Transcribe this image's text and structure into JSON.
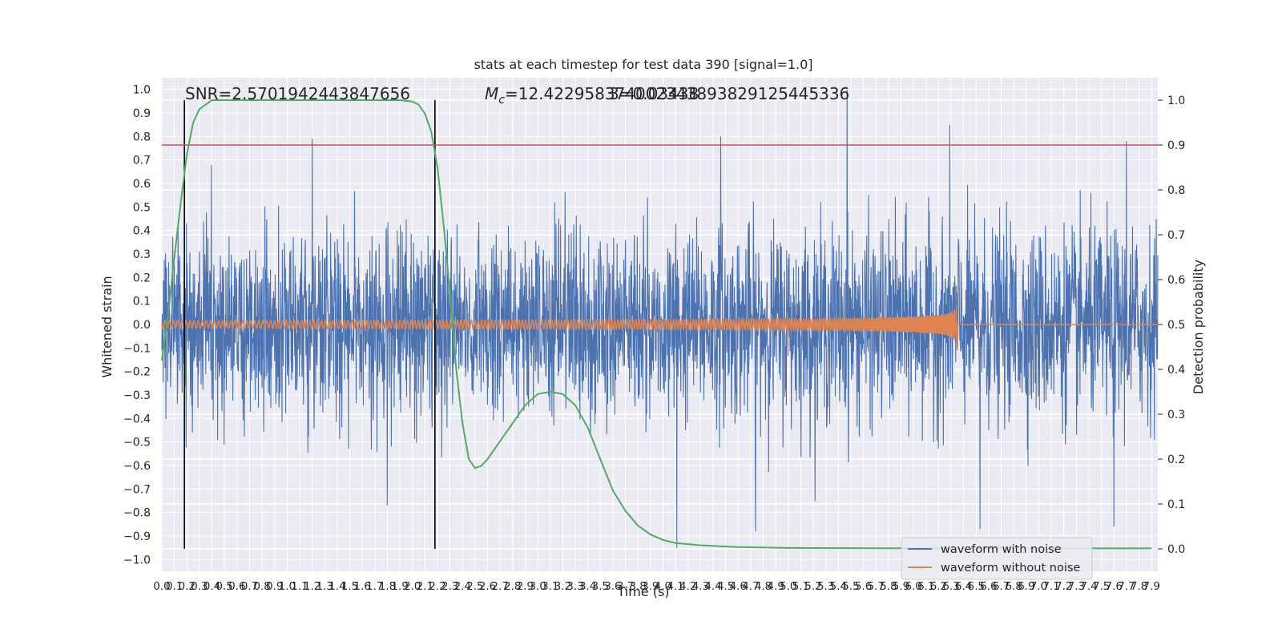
{
  "chart_data": {
    "type": "line",
    "title": "stats at each timestep for test data 390 [signal=1.0]",
    "xlabel": "Time (s)",
    "ylabel": "Whitened strain",
    "ylabel_right": "Detection probability",
    "xlim": [
      0.0,
      7.95
    ],
    "ylim": [
      -1.05,
      1.05
    ],
    "ylim_right": [
      -0.05,
      1.05
    ],
    "x_ticks": [
      0.0,
      0.1,
      0.2,
      0.3,
      0.4,
      0.5,
      0.6,
      0.7,
      0.8,
      0.9,
      1.0,
      1.1,
      1.2,
      1.3,
      1.4,
      1.5,
      1.6,
      1.7,
      1.8,
      1.9,
      2.0,
      2.1,
      2.2,
      2.3,
      2.4,
      2.5,
      2.6,
      2.7,
      2.8,
      2.9,
      3.0,
      3.1,
      3.2,
      3.3,
      3.4,
      3.5,
      3.6,
      3.7,
      3.8,
      3.9,
      4.0,
      4.1,
      4.2,
      4.3,
      4.4,
      4.5,
      4.6,
      4.7,
      4.8,
      4.9,
      5.0,
      5.1,
      5.2,
      5.3,
      5.4,
      5.5,
      5.6,
      5.7,
      5.8,
      5.9,
      6.0,
      6.1,
      6.2,
      6.3,
      6.4,
      6.5,
      6.6,
      6.7,
      6.8,
      6.9,
      7.0,
      7.1,
      7.2,
      7.3,
      7.4,
      7.5,
      7.6,
      7.7,
      7.8,
      7.9
    ],
    "x_tick_labels": [
      "0.0",
      "0.1",
      "0.2",
      "0.3",
      "0.4",
      "0.5",
      "0.6",
      "0.7",
      "0.8",
      "0.9",
      "1.0",
      "1.1",
      "1.2",
      "1.3",
      "1.4",
      "1.5",
      "1.6",
      "1.7",
      "1.8",
      "1.9",
      "2.0",
      "2.1",
      "2.2",
      "2.3",
      "2.4",
      "2.5",
      "2.6",
      "2.7",
      "2.8",
      "2.9",
      "3.0",
      "3.1",
      "3.2",
      "3.3",
      "3.4",
      "3.5",
      "3.6",
      "3.7",
      "3.8",
      "3.9",
      "4.0",
      "4.1",
      "4.2",
      "4.3",
      "4.4",
      "4.5",
      "4.6",
      "4.7",
      "4.8",
      "4.9",
      "5.0",
      "5.1",
      "5.2",
      "5.3",
      "5.4",
      "5.5",
      "5.6",
      "5.7",
      "5.8",
      "5.9",
      "6.0",
      "6.1",
      "6.2",
      "6.3",
      "6.4",
      "6.5",
      "6.6",
      "6.7",
      "6.8",
      "6.9",
      "7.0",
      "7.1",
      "7.2",
      "7.3",
      "7.4",
      "7.5",
      "7.6",
      "7.7",
      "7.8",
      "7.9"
    ],
    "y_ticks": [
      -1.0,
      -0.9,
      -0.8,
      -0.7,
      -0.6,
      -0.5,
      -0.4,
      -0.3,
      -0.2,
      -0.1,
      0.0,
      0.1,
      0.2,
      0.3,
      0.4,
      0.5,
      0.6,
      0.7,
      0.8,
      0.9,
      1.0
    ],
    "y_tick_labels": [
      "−1.0",
      "−0.9",
      "−0.8",
      "−0.7",
      "−0.6",
      "−0.5",
      "−0.4",
      "−0.3",
      "−0.2",
      "−0.1",
      "0.0",
      "0.1",
      "0.2",
      "0.3",
      "0.4",
      "0.5",
      "0.6",
      "0.7",
      "0.8",
      "0.9",
      "1.0"
    ],
    "y_ticks_right": [
      0.0,
      0.1,
      0.2,
      0.3,
      0.4,
      0.5,
      0.6,
      0.7,
      0.8,
      0.9,
      1.0
    ],
    "y_tick_labels_right": [
      "0.0",
      "0.1",
      "0.2",
      "0.3",
      "0.4",
      "0.5",
      "0.6",
      "0.7",
      "0.8",
      "0.9",
      "1.0"
    ],
    "grid": true,
    "legend_position": "lower-right",
    "annotations": {
      "snr_text": "SNR=2.5701942443847656",
      "mc_text": "=12.42295837400234389382912544533​6",
      "mc_symbol": "M",
      "mc_sub": "c",
      "overlap_text": "3=0.03438"
    },
    "vertical_lines_x": [
      0.18,
      2.18
    ],
    "threshold_line_right": 0.9,
    "series": [
      {
        "name": "waveform with noise",
        "color": "#4c72b0",
        "kind": "noise",
        "amplitude_sd": 0.2,
        "spikes": [
          {
            "x": 5.47,
            "y": 1.0
          },
          {
            "x": 6.29,
            "y": 0.85
          },
          {
            "x": 4.46,
            "y": 0.8
          },
          {
            "x": 1.2,
            "y": 0.79
          },
          {
            "x": 7.7,
            "y": 0.78
          },
          {
            "x": 6.53,
            "y": -0.87
          },
          {
            "x": 4.11,
            "y": -0.95
          },
          {
            "x": 7.6,
            "y": -0.86
          },
          {
            "x": 4.74,
            "y": -0.88
          },
          {
            "x": 1.8,
            "y": -0.77
          }
        ]
      },
      {
        "name": "waveform without noise",
        "color": "#dd8452",
        "kind": "chirp",
        "start_x": 0.0,
        "merger_x": 6.35,
        "peak_amplitude": 0.11
      },
      {
        "name": "",
        "color": "#55a868",
        "axis": "right",
        "x": [
          0.0,
          0.05,
          0.1,
          0.15,
          0.2,
          0.25,
          0.3,
          0.35,
          0.4,
          0.5,
          0.6,
          0.8,
          1.0,
          1.5,
          1.9,
          2.0,
          2.05,
          2.1,
          2.15,
          2.2,
          2.25,
          2.3,
          2.35,
          2.4,
          2.45,
          2.5,
          2.55,
          2.6,
          2.7,
          2.8,
          2.9,
          3.0,
          3.1,
          3.2,
          3.3,
          3.4,
          3.5,
          3.6,
          3.7,
          3.8,
          3.9,
          4.0,
          4.1,
          4.3,
          4.6,
          5.0,
          6.0,
          7.9
        ],
        "y": [
          0.42,
          0.52,
          0.65,
          0.77,
          0.88,
          0.95,
          0.98,
          0.99,
          1.0,
          1.0,
          1.0,
          1.0,
          1.0,
          1.0,
          1.0,
          0.997,
          0.99,
          0.97,
          0.93,
          0.85,
          0.72,
          0.57,
          0.4,
          0.28,
          0.2,
          0.18,
          0.185,
          0.2,
          0.24,
          0.28,
          0.32,
          0.345,
          0.35,
          0.345,
          0.32,
          0.27,
          0.2,
          0.13,
          0.085,
          0.052,
          0.032,
          0.02,
          0.013,
          0.008,
          0.004,
          0.002,
          0.001,
          0.001
        ]
      }
    ]
  }
}
